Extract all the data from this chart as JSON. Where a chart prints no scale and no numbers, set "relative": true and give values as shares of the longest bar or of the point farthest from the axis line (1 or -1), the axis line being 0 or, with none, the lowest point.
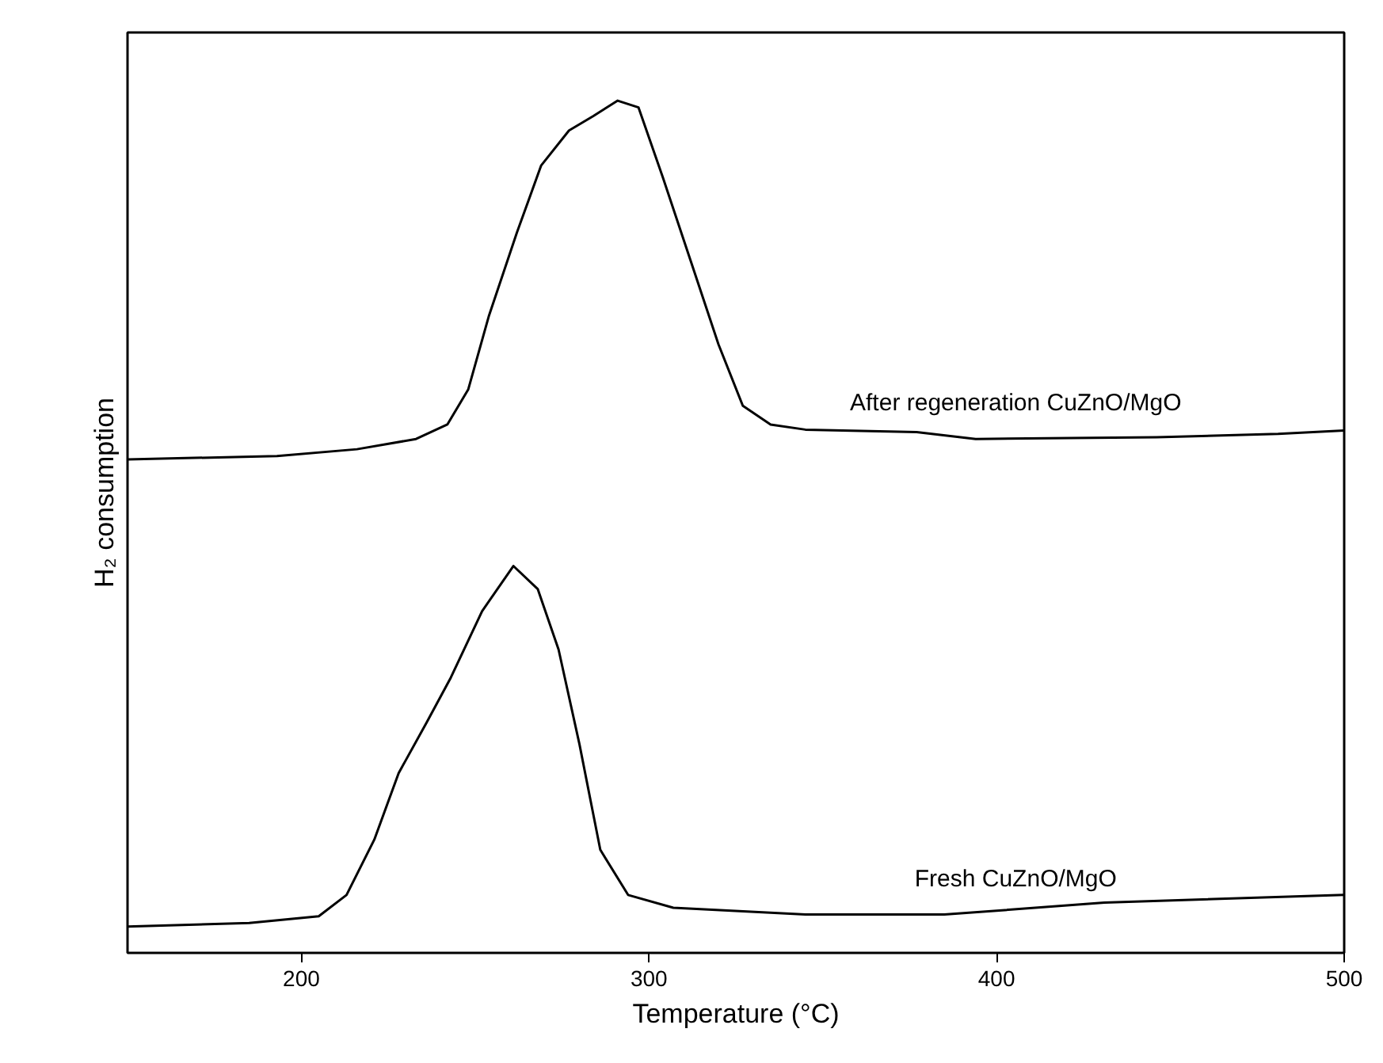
{
  "chart_data": {
    "type": "line",
    "relative": true,
    "xlabel": "Temperature (°C)",
    "ylabel": "H₂ consumption",
    "xlim": [
      150,
      500
    ],
    "xticks": [
      200,
      300,
      400,
      500
    ],
    "grid": false,
    "marker": "none",
    "line_style": "solid",
    "series": [
      {
        "name": "After regeneration CuZnO/MgO",
        "color": "#000000",
        "x": [
          150,
          193,
          216,
          233,
          242,
          248,
          254,
          262,
          269,
          277,
          284,
          291,
          297,
          304,
          312,
          320,
          327,
          335,
          345,
          377,
          394,
          446,
          481,
          500
        ],
        "values": [
          0.579,
          0.583,
          0.591,
          0.603,
          0.62,
          0.661,
          0.748,
          0.845,
          0.924,
          0.965,
          0.982,
          1.0,
          0.992,
          0.91,
          0.812,
          0.714,
          0.642,
          0.62,
          0.614,
          0.611,
          0.603,
          0.605,
          0.609,
          0.613
        ]
      },
      {
        "name": "Fresh CuZnO/MgO",
        "color": "#000000",
        "x": [
          150,
          185,
          205,
          213,
          221,
          228,
          236,
          243,
          252,
          261,
          268,
          274,
          280,
          286,
          294,
          307,
          345,
          385,
          431,
          500
        ],
        "values": [
          0.031,
          0.035,
          0.043,
          0.068,
          0.133,
          0.211,
          0.27,
          0.323,
          0.401,
          0.454,
          0.427,
          0.356,
          0.245,
          0.121,
          0.068,
          0.053,
          0.045,
          0.045,
          0.059,
          0.068
        ]
      }
    ]
  }
}
